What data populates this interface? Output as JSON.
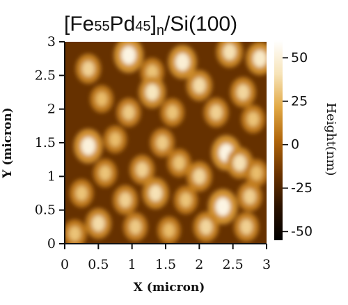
{
  "chart_data": {
    "type": "heatmap",
    "title_main": "[Fe",
    "title_sub1": "55",
    "title_mid": "Pd",
    "title_sub2": "45",
    "title_close": "]",
    "title_sub3": "n",
    "title_tail": "/Si(100)",
    "xlabel": "X (micron)",
    "ylabel": "Y (micron)",
    "xlim": [
      0,
      3
    ],
    "ylim": [
      0,
      3
    ],
    "x_ticks": [
      "0",
      "0.5",
      "1",
      "1.5",
      "2",
      "2.5",
      "3"
    ],
    "y_ticks": [
      "0",
      "0.5",
      "1",
      "1.5",
      "2",
      "2.5",
      "3"
    ],
    "colorbar": {
      "label": "Height(nm)",
      "ticks": [
        "50",
        "25",
        "0",
        "-25",
        "-50"
      ],
      "range": [
        -55,
        60
      ],
      "colors": [
        "#000000",
        "#2a1200",
        "#6b3300",
        "#b0650a",
        "#e2a945",
        "#f7e4b9",
        "#ffffff"
      ]
    },
    "surface_features": [
      {
        "x": 0.95,
        "y": 2.8,
        "h": 52
      },
      {
        "x": 1.75,
        "y": 2.7,
        "h": 48
      },
      {
        "x": 2.45,
        "y": 2.85,
        "h": 40
      },
      {
        "x": 2.9,
        "y": 2.75,
        "h": 45
      },
      {
        "x": 0.35,
        "y": 2.6,
        "h": 35
      },
      {
        "x": 1.3,
        "y": 2.55,
        "h": 30
      },
      {
        "x": 1.3,
        "y": 2.25,
        "h": 42
      },
      {
        "x": 2.0,
        "y": 2.35,
        "h": 38
      },
      {
        "x": 2.65,
        "y": 2.25,
        "h": 36
      },
      {
        "x": 0.55,
        "y": 2.15,
        "h": 28
      },
      {
        "x": 0.95,
        "y": 1.95,
        "h": 32
      },
      {
        "x": 1.6,
        "y": 1.95,
        "h": 30
      },
      {
        "x": 2.25,
        "y": 1.95,
        "h": 34
      },
      {
        "x": 2.8,
        "y": 1.85,
        "h": 30
      },
      {
        "x": 0.35,
        "y": 1.45,
        "h": 50
      },
      {
        "x": 0.75,
        "y": 1.55,
        "h": 28
      },
      {
        "x": 1.45,
        "y": 1.5,
        "h": 32
      },
      {
        "x": 2.4,
        "y": 1.35,
        "h": 52
      },
      {
        "x": 2.6,
        "y": 1.2,
        "h": 40
      },
      {
        "x": 0.6,
        "y": 1.05,
        "h": 30
      },
      {
        "x": 1.15,
        "y": 1.1,
        "h": 34
      },
      {
        "x": 1.7,
        "y": 1.2,
        "h": 30
      },
      {
        "x": 2.0,
        "y": 1.0,
        "h": 36
      },
      {
        "x": 2.85,
        "y": 1.05,
        "h": 28
      },
      {
        "x": 0.25,
        "y": 0.75,
        "h": 30
      },
      {
        "x": 0.9,
        "y": 0.65,
        "h": 34
      },
      {
        "x": 1.35,
        "y": 0.75,
        "h": 40
      },
      {
        "x": 1.8,
        "y": 0.65,
        "h": 30
      },
      {
        "x": 2.35,
        "y": 0.55,
        "h": 52
      },
      {
        "x": 2.75,
        "y": 0.7,
        "h": 34
      },
      {
        "x": 0.5,
        "y": 0.3,
        "h": 38
      },
      {
        "x": 1.05,
        "y": 0.25,
        "h": 32
      },
      {
        "x": 1.55,
        "y": 0.2,
        "h": 28
      },
      {
        "x": 2.1,
        "y": 0.25,
        "h": 36
      },
      {
        "x": 2.7,
        "y": 0.25,
        "h": 34
      },
      {
        "x": 0.15,
        "y": 0.15,
        "h": 30
      }
    ]
  }
}
